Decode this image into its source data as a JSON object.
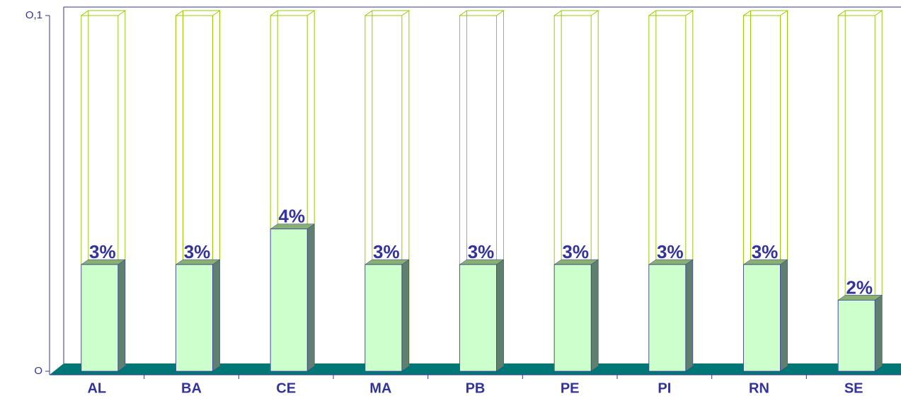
{
  "chart_data": {
    "type": "bar3d",
    "categories": [
      "AL",
      "BA",
      "CE",
      "MA",
      "PB",
      "PE",
      "PI",
      "RN",
      "SE"
    ],
    "values": [
      0.03,
      0.03,
      0.04,
      0.03,
      0.03,
      0.03,
      0.03,
      0.03,
      0.02
    ],
    "value_labels": [
      "3%",
      "3%",
      "4%",
      "3%",
      "3%",
      "3%",
      "3%",
      "3%",
      "2%"
    ],
    "color": "#ccffcc",
    "ylim": [
      0,
      0.1
    ],
    "yticks": [
      {
        "value": 0,
        "label": "O"
      },
      {
        "value": 0.1,
        "label": "O,1"
      }
    ]
  }
}
